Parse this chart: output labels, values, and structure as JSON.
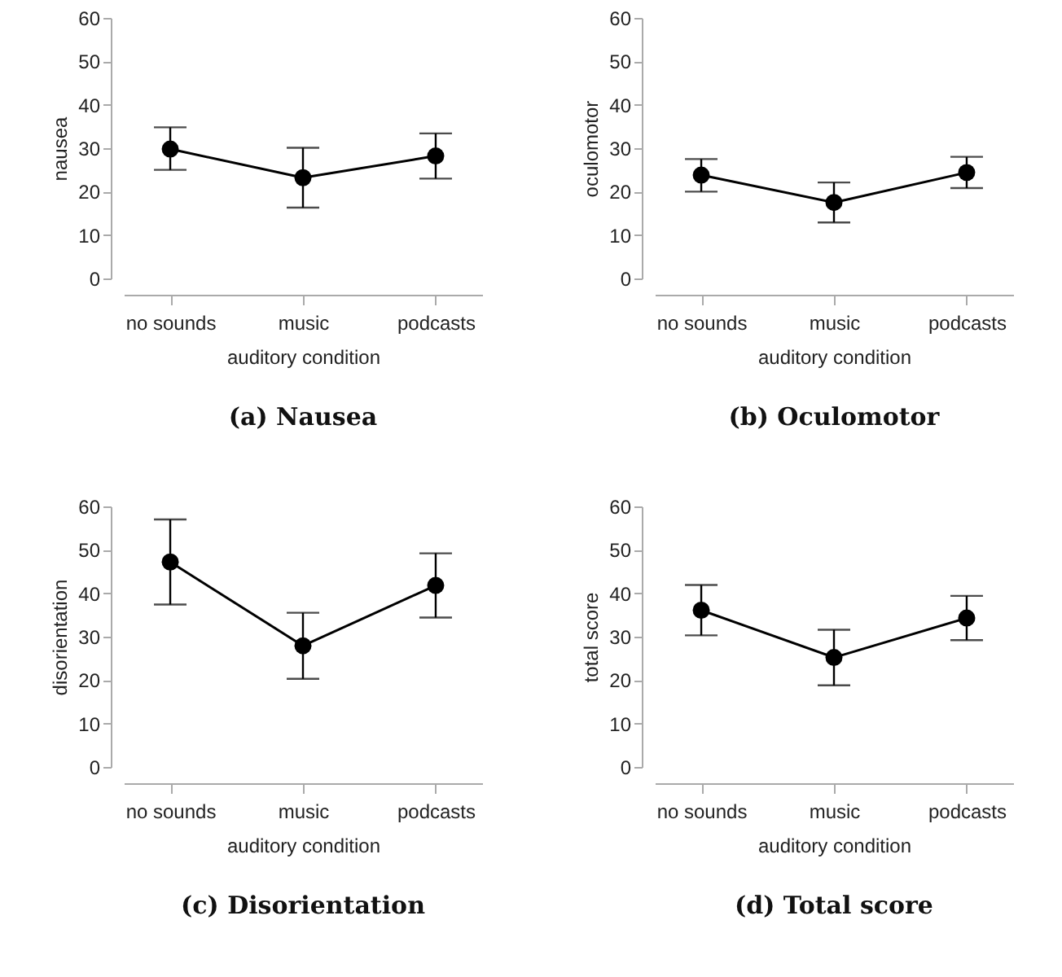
{
  "chart_data": [
    {
      "type": "line",
      "title": "(a) Nausea",
      "xlabel": "auditory condition",
      "ylabel": "nausea",
      "categories": [
        "no sounds",
        "music",
        "podcasts"
      ],
      "series": [
        {
          "color": "#000000",
          "values": [
            29.8,
            23.2,
            28.2
          ],
          "errors": [
            [
              25.0,
              34.8
            ],
            [
              16.3,
              30.1
            ],
            [
              23.0,
              33.4
            ]
          ]
        }
      ],
      "ylim": [
        0,
        60
      ],
      "yticks": [
        0,
        10,
        20,
        30,
        40,
        50,
        60
      ],
      "grid": false,
      "marker": "circle"
    },
    {
      "type": "line",
      "title": "(b) Oculomotor",
      "xlabel": "auditory condition",
      "ylabel": "oculomotor",
      "categories": [
        "no sounds",
        "music",
        "podcasts"
      ],
      "series": [
        {
          "color": "#000000",
          "values": [
            23.8,
            17.5,
            24.4
          ],
          "errors": [
            [
              20.0,
              27.5
            ],
            [
              12.9,
              22.1
            ],
            [
              20.8,
              28.0
            ]
          ]
        }
      ],
      "ylim": [
        0,
        60
      ],
      "yticks": [
        0,
        10,
        20,
        30,
        40,
        50,
        60
      ],
      "grid": false,
      "marker": "circle"
    },
    {
      "type": "line",
      "title": "(c) Disorientation",
      "xlabel": "auditory condition",
      "ylabel": "disorientation",
      "categories": [
        "no sounds",
        "music",
        "podcasts"
      ],
      "series": [
        {
          "color": "#000000",
          "values": [
            47.2,
            27.9,
            41.8
          ],
          "errors": [
            [
              37.4,
              57.0
            ],
            [
              20.3,
              35.5
            ],
            [
              34.4,
              49.2
            ]
          ]
        }
      ],
      "ylim": [
        0,
        60
      ],
      "yticks": [
        0,
        10,
        20,
        30,
        40,
        50,
        60
      ],
      "grid": false,
      "marker": "circle"
    },
    {
      "type": "line",
      "title": "(d) Total score",
      "xlabel": "auditory condition",
      "ylabel": "total score",
      "categories": [
        "no sounds",
        "music",
        "podcasts"
      ],
      "series": [
        {
          "color": "#000000",
          "values": [
            36.1,
            25.2,
            34.3
          ],
          "errors": [
            [
              30.3,
              41.9
            ],
            [
              18.8,
              31.6
            ],
            [
              29.2,
              39.4
            ]
          ]
        }
      ],
      "ylim": [
        0,
        60
      ],
      "yticks": [
        0,
        10,
        20,
        30,
        40,
        50,
        60
      ],
      "grid": false,
      "marker": "circle"
    }
  ]
}
